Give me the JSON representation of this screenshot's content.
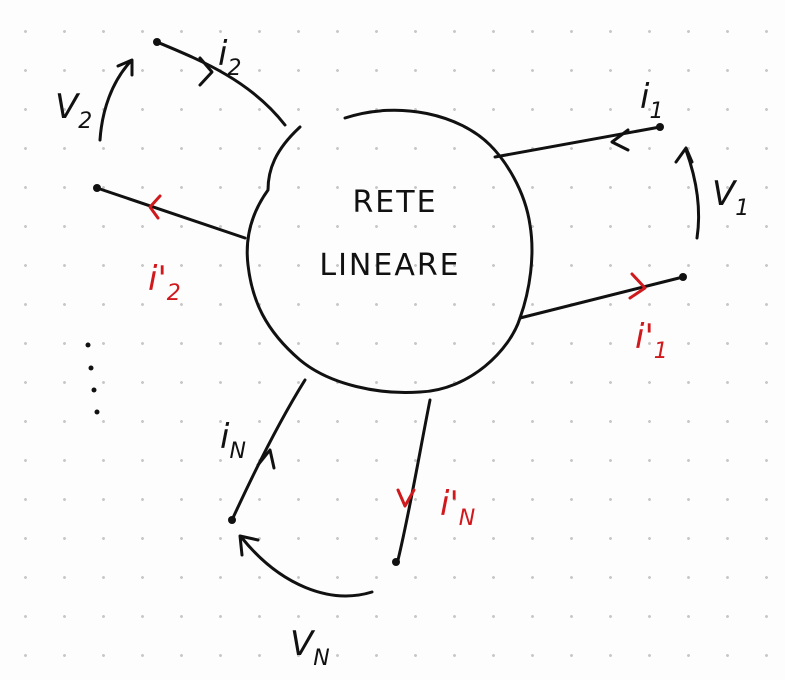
{
  "network": {
    "title_lines": [
      "RETE",
      "LINEARE"
    ]
  },
  "labels": [
    {
      "text": "i",
      "sub": "1"
    },
    {
      "text": "V",
      "sub": "1"
    },
    {
      "text": "i'",
      "sub": "1"
    },
    {
      "text": "i",
      "sub": "2"
    },
    {
      "text": "V",
      "sub": "2"
    },
    {
      "text": "i'",
      "sub": "2"
    },
    {
      "text": "i",
      "sub": "N"
    },
    {
      "text": "V",
      "sub": "N"
    },
    {
      "text": "i'",
      "sub": "N"
    }
  ]
}
